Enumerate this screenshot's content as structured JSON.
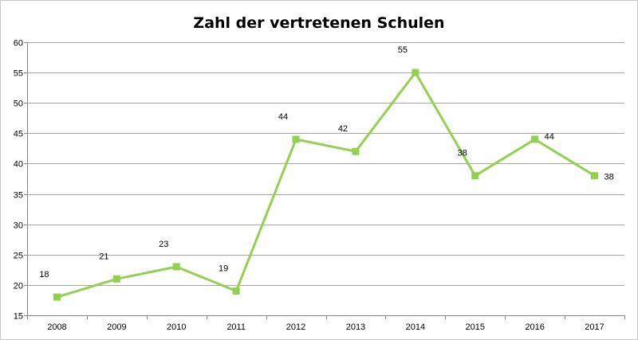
{
  "chart_data": {
    "type": "line",
    "title": "Zahl der vertretenen Schulen",
    "xlabel": "",
    "ylabel": "",
    "categories": [
      "2008",
      "2009",
      "2010",
      "2011",
      "2012",
      "2013",
      "2014",
      "2015",
      "2016",
      "2017"
    ],
    "series": [
      {
        "values": [
          18,
          21,
          23,
          19,
          44,
          42,
          55,
          38,
          44,
          38
        ],
        "color": "#92d050"
      }
    ],
    "ylim": [
      15,
      60
    ],
    "yticks": [
      15,
      20,
      25,
      30,
      35,
      40,
      45,
      50,
      55,
      60
    ],
    "data_labels": [
      "18",
      "21",
      "23",
      "19",
      "44",
      "42",
      "55",
      "38",
      "44",
      "38"
    ],
    "grid": "horizontal",
    "gridline_color": "#a6a6a6",
    "legend": "none"
  }
}
